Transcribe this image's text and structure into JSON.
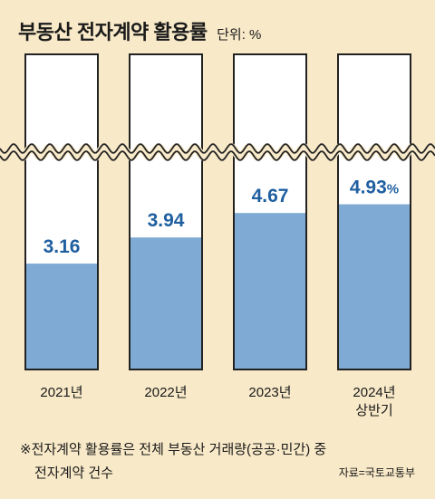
{
  "title": "부동산 전자계약 활용률",
  "unit": "단위: %",
  "chart_data": {
    "type": "bar",
    "categories": [
      "2021년",
      "2022년",
      "2023년",
      "2024년 상반기"
    ],
    "values": [
      3.16,
      3.94,
      4.67,
      4.93
    ],
    "value_labels": [
      "3.16",
      "3.94",
      "4.67",
      "4.93%"
    ],
    "axis_break": true,
    "ylim": [
      0,
      10
    ],
    "bar_color": "#7eaad3",
    "box_border_color": "#222222",
    "label_color": "#1f5fa0"
  },
  "note": {
    "line1": "※전자계약 활용률은 전체 부동산 거래량(공공·민간) 중",
    "line2": "전자계약 건수"
  },
  "source": "자료=국토교통부"
}
